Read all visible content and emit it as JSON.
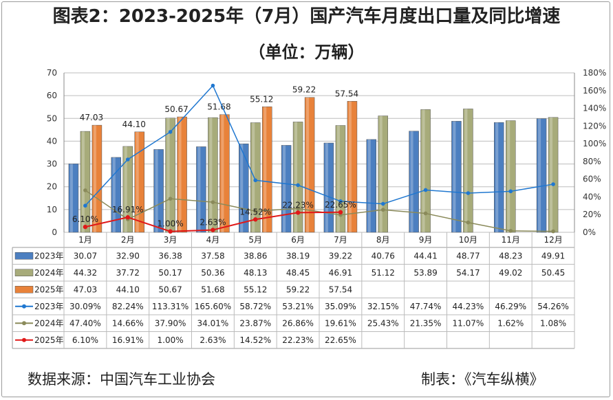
{
  "title": "图表2：2023-2025年（7月）国产汽车月度出口量及同比增速",
  "subtitle": "（单位：万辆）",
  "source": "数据来源：中国汽车工业协会",
  "made_by": "制表：《汽车纵横》",
  "chart_data": {
    "type": "bar",
    "categories": [
      "1月",
      "2月",
      "3月",
      "4月",
      "5月",
      "6月",
      "7月",
      "8月",
      "9月",
      "10月",
      "11月",
      "12月"
    ],
    "y_left": {
      "min": 0,
      "max": 70,
      "ticks": [
        "0",
        "10",
        "20",
        "30",
        "40",
        "50",
        "60",
        "70"
      ]
    },
    "y_right": {
      "min": 0,
      "max": 180,
      "ticks": [
        "0%",
        "20%",
        "40%",
        "60%",
        "80%",
        "100%",
        "120%",
        "140%",
        "160%",
        "180%"
      ]
    },
    "grid": true,
    "bar_series": [
      {
        "name": "2023年",
        "color": "#4c7fc0",
        "values": [
          30.07,
          32.9,
          36.38,
          37.58,
          38.86,
          38.19,
          39.22,
          40.76,
          44.41,
          48.77,
          48.23,
          49.91
        ],
        "labels": [
          "30.07",
          "32.90",
          "36.38",
          "37.58",
          "38.86",
          "38.19",
          "39.22",
          "40.76",
          "44.41",
          "48.77",
          "48.23",
          "49.91"
        ]
      },
      {
        "name": "2024年",
        "color": "#a7ab7a",
        "values": [
          44.32,
          37.72,
          50.17,
          50.36,
          48.13,
          48.45,
          46.91,
          51.12,
          53.89,
          54.17,
          49.02,
          50.45
        ],
        "labels": [
          "44.32",
          "37.72",
          "50.17",
          "50.36",
          "48.13",
          "48.45",
          "46.91",
          "51.12",
          "53.89",
          "54.17",
          "49.02",
          "50.45"
        ]
      },
      {
        "name": "2025年",
        "color": "#e8823a",
        "values": [
          47.03,
          44.1,
          50.67,
          51.68,
          55.12,
          59.22,
          57.54,
          null,
          null,
          null,
          null,
          null
        ],
        "labels": [
          "47.03",
          "44.10",
          "50.67",
          "51.68",
          "55.12",
          "59.22",
          "57.54",
          "",
          "",
          "",
          "",
          ""
        ]
      }
    ],
    "line_series": [
      {
        "name": "2023年",
        "color": "#1f77d0",
        "values": [
          30.09,
          82.24,
          113.31,
          165.6,
          58.72,
          53.21,
          35.09,
          32.15,
          47.74,
          44.23,
          46.29,
          54.26
        ],
        "labels": [
          "30.09%",
          "82.24%",
          "113.31%",
          "165.60%",
          "58.72%",
          "53.21%",
          "35.09%",
          "32.15%",
          "47.74%",
          "44.23%",
          "46.29%",
          "54.26%"
        ]
      },
      {
        "name": "2024年",
        "color": "#8a8a5a",
        "values": [
          47.4,
          14.66,
          37.9,
          34.01,
          23.87,
          26.86,
          19.61,
          25.43,
          21.35,
          11.07,
          1.62,
          1.08
        ],
        "labels": [
          "47.40%",
          "14.66%",
          "37.90%",
          "34.01%",
          "23.87%",
          "26.86%",
          "19.61%",
          "25.43%",
          "21.35%",
          "11.07%",
          "1.62%",
          "1.08%"
        ]
      },
      {
        "name": "2025年",
        "color": "#e01818",
        "values": [
          6.1,
          16.91,
          1.0,
          2.63,
          14.52,
          22.23,
          22.65,
          null,
          null,
          null,
          null,
          null
        ],
        "labels": [
          "6.10%",
          "16.91%",
          "1.00%",
          "2.63%",
          "14.52%",
          "22.23%",
          "22.65%",
          "",
          "",
          "",
          "",
          ""
        ]
      }
    ],
    "bar_value_labels": [
      "47.03",
      "44.10",
      "50.67",
      "51.68",
      "55.12",
      "59.22",
      "57.54"
    ],
    "line_value_labels": [
      "6.10%",
      "16.91%",
      "1.00%",
      "2.63%",
      "14.52%",
      "22.23%",
      "22.65%"
    ]
  }
}
